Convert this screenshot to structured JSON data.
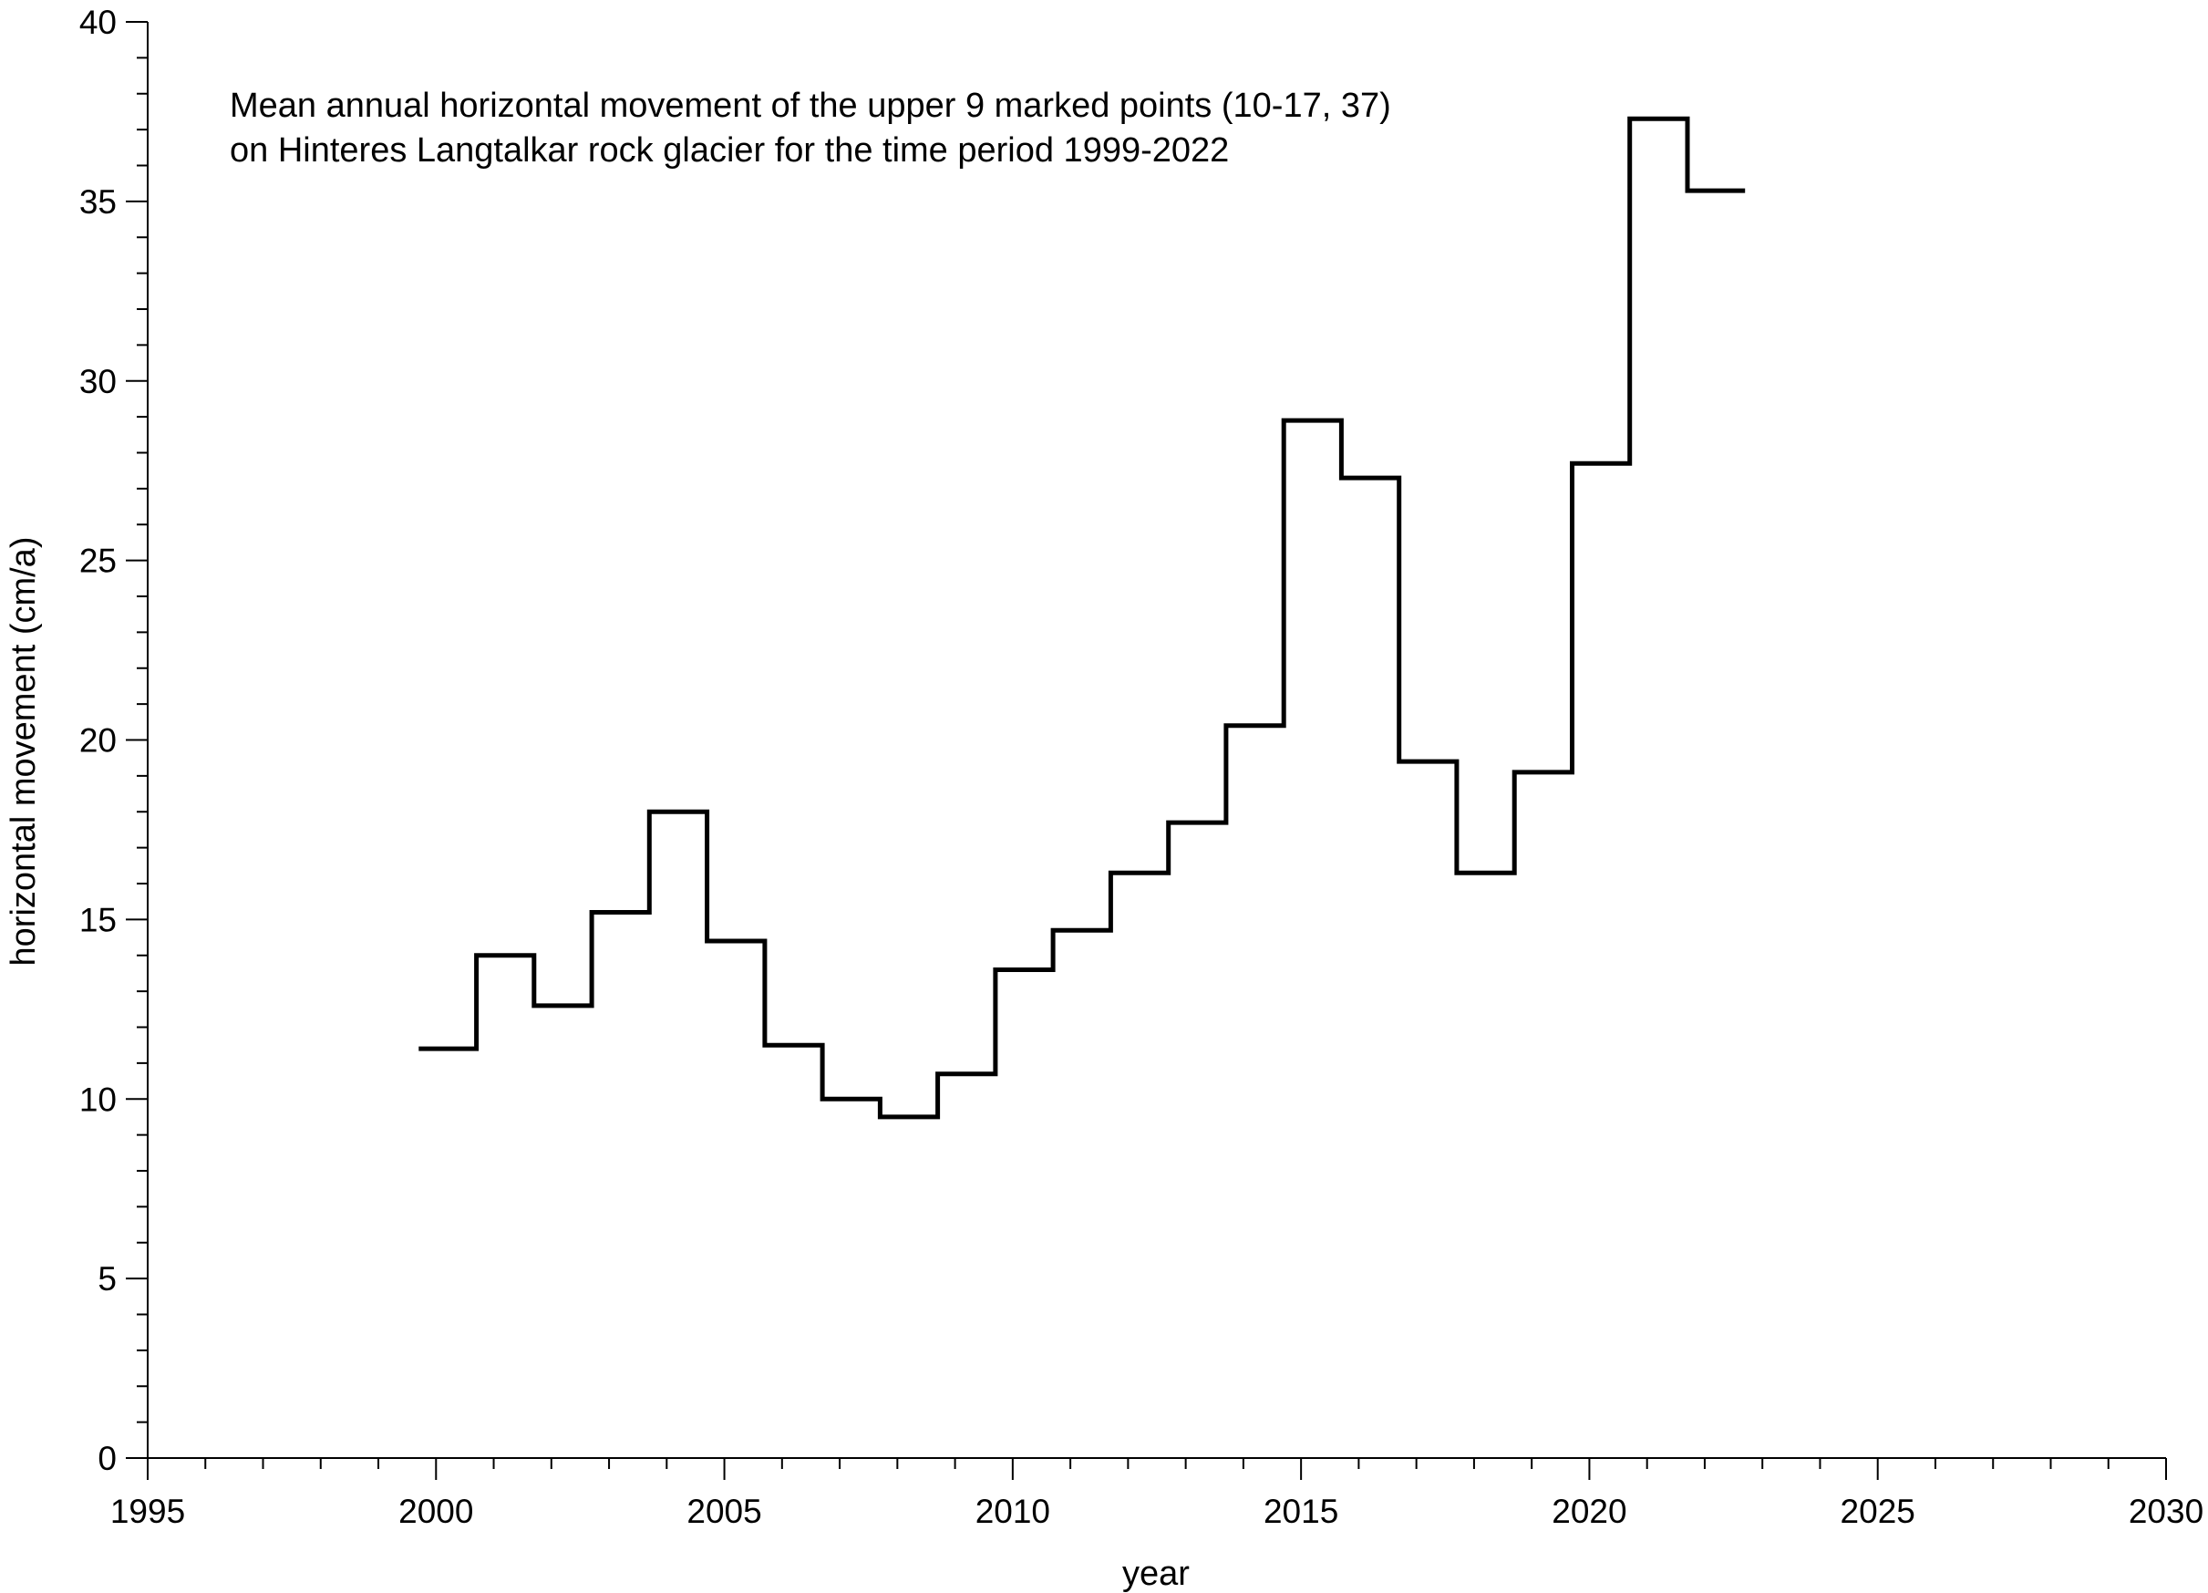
{
  "chart_data": {
    "type": "line",
    "style": "step",
    "title_lines": [
      "Mean annual horizontal movement of the upper 9 marked points (10-17, 37)",
      "on Hinteres Langtalkar rock glacier for the time period 1999-2022"
    ],
    "xlabel": "year",
    "ylabel": "horizontal movement (cm/a)",
    "xlim": [
      1995,
      2030
    ],
    "ylim": [
      0,
      40
    ],
    "x_ticks": [
      1995,
      2000,
      2005,
      2010,
      2015,
      2020,
      2025,
      2030
    ],
    "y_ticks": [
      0,
      5,
      10,
      15,
      20,
      25,
      30,
      35,
      40
    ],
    "grid": false,
    "legend": "none",
    "line_color": "#000000",
    "series": [
      {
        "periods": [
          {
            "start": 1999.7,
            "end": 2000.7,
            "value": 11.4
          },
          {
            "start": 2000.7,
            "end": 2001.7,
            "value": 14.0
          },
          {
            "start": 2001.7,
            "end": 2002.7,
            "value": 12.6
          },
          {
            "start": 2002.7,
            "end": 2003.7,
            "value": 15.2
          },
          {
            "start": 2003.7,
            "end": 2004.7,
            "value": 18.0
          },
          {
            "start": 2004.7,
            "end": 2005.7,
            "value": 14.4
          },
          {
            "start": 2005.7,
            "end": 2006.7,
            "value": 11.5
          },
          {
            "start": 2006.7,
            "end": 2007.7,
            "value": 10.0
          },
          {
            "start": 2007.7,
            "end": 2008.7,
            "value": 9.5
          },
          {
            "start": 2008.7,
            "end": 2009.7,
            "value": 10.7
          },
          {
            "start": 2009.7,
            "end": 2010.7,
            "value": 13.6
          },
          {
            "start": 2010.7,
            "end": 2011.7,
            "value": 14.7
          },
          {
            "start": 2011.7,
            "end": 2012.7,
            "value": 16.3
          },
          {
            "start": 2012.7,
            "end": 2013.7,
            "value": 17.7
          },
          {
            "start": 2013.7,
            "end": 2014.7,
            "value": 20.4
          },
          {
            "start": 2014.7,
            "end": 2015.7,
            "value": 28.9
          },
          {
            "start": 2015.7,
            "end": 2016.7,
            "value": 27.3
          },
          {
            "start": 2016.7,
            "end": 2017.7,
            "value": 19.4
          },
          {
            "start": 2017.7,
            "end": 2018.7,
            "value": 16.3
          },
          {
            "start": 2018.7,
            "end": 2019.7,
            "value": 19.1
          },
          {
            "start": 2019.7,
            "end": 2020.7,
            "value": 27.7
          },
          {
            "start": 2020.7,
            "end": 2021.7,
            "value": 37.3
          },
          {
            "start": 2021.7,
            "end": 2022.7,
            "value": 35.3
          }
        ]
      }
    ]
  }
}
